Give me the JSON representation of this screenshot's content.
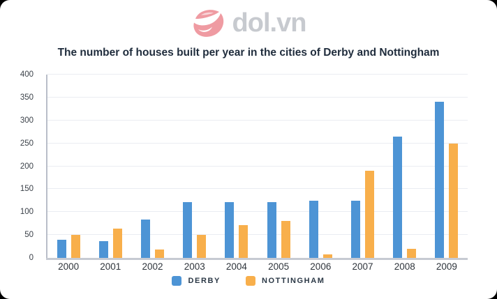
{
  "logo": {
    "text": "dol.vn",
    "icon": "dol-swoosh-icon",
    "icon_color": "#ef9ba2",
    "text_color": "#c7cacf"
  },
  "title": "The number of houses built per year in the cities of Derby and Nottingham",
  "colors": {
    "derby": "#4d94d5",
    "nottingham": "#f8af4b",
    "gridline": "#eaecf2",
    "axis_line": "#c6cad2",
    "title_text": "#1f2c3c",
    "tick_text": "#3b4149"
  },
  "chart_data": {
    "type": "bar",
    "title": "The number of houses built per year in the cities of Derby and Nottingham",
    "categories": [
      "2000",
      "2001",
      "2002",
      "2003",
      "2004",
      "2005",
      "2006",
      "2007",
      "2008",
      "2009"
    ],
    "series": [
      {
        "name": "Derby",
        "color": "#4d94d5",
        "values": [
          40,
          37,
          84,
          122,
          122,
          122,
          124,
          124,
          265,
          340
        ]
      },
      {
        "name": "Nottingham",
        "color": "#f8af4b",
        "values": [
          50,
          64,
          18,
          50,
          72,
          80,
          8,
          190,
          20,
          250
        ]
      }
    ],
    "xlabel": "",
    "ylabel": "",
    "ylim": [
      0,
      400
    ],
    "yticks": [
      0,
      50,
      100,
      150,
      200,
      250,
      300,
      350,
      400
    ],
    "grid": true,
    "legend_position": "bottom"
  },
  "legend": {
    "items": [
      {
        "label": "DERBY",
        "color": "#4d94d5",
        "series": "Derby"
      },
      {
        "label": "NOTTINGHAM",
        "color": "#f8af4b",
        "series": "Nottingham"
      }
    ]
  }
}
